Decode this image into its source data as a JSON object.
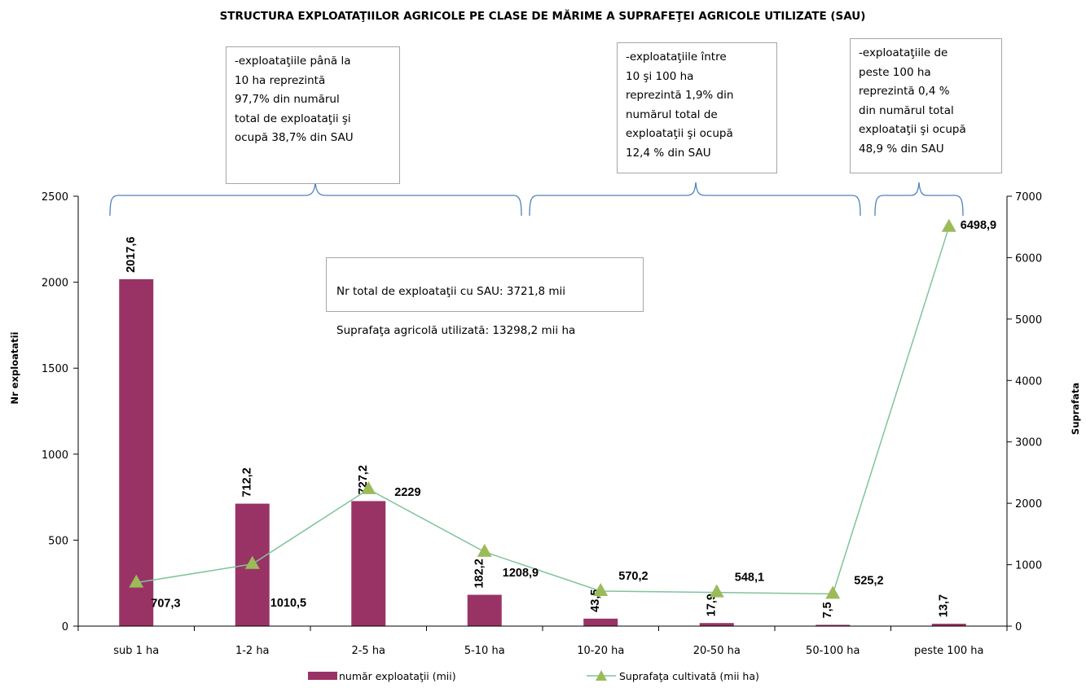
{
  "chart_data": {
    "type": "bar",
    "title": "STRUCTURA EXPLOATAŢIILOR AGRICOLE PE CLASE DE MĂRIME  A SUPRAFEŢEI AGRICOLE UTILIZATE  (SAU)",
    "categories": [
      "sub 1 ha",
      "1-2 ha",
      "2-5 ha",
      "5-10 ha",
      "10-20 ha",
      "20-50 ha",
      "50-100 ha",
      "peste 100 ha"
    ],
    "ylabel": "Nr exploatatii",
    "y2label": "Suprafata",
    "ylim": [
      0,
      2500
    ],
    "y2lim": [
      0,
      7000
    ],
    "yticks": [
      "0",
      "500",
      "1000",
      "1500",
      "2000",
      "2500"
    ],
    "y2ticks": [
      "0",
      "1000",
      "2000",
      "3000",
      "4000",
      "5000",
      "6000",
      "7000"
    ],
    "grid": false,
    "legend_position": "bottom",
    "series": [
      {
        "name": "număr exploataţii (mii)",
        "type": "bar",
        "axis": "left",
        "color": "#993366",
        "values": [
          2017.6,
          712.2,
          727.2,
          182.2,
          43.5,
          17.9,
          7.5,
          13.7
        ],
        "labels": [
          "2017,6",
          "712,2",
          "727,2",
          "182,2",
          "43,5",
          "17,9",
          "7,5",
          "13,7"
        ]
      },
      {
        "name": "Suprafaţa cultivată (mii ha)",
        "type": "line",
        "axis": "right",
        "color": "#7fc49b",
        "marker_color": "#9bbb59",
        "values": [
          707.3,
          1010.5,
          2229,
          1208.9,
          570.2,
          548.1,
          525.2,
          6498.9
        ],
        "labels": [
          "707,3",
          "1010,5",
          "2229",
          "1208,9",
          "570,2",
          "548,1",
          "525,2",
          "6498,9"
        ]
      }
    ],
    "annotations": [
      "-exploataţiile până la\n10 ha reprezintă\n97,7% din numărul\ntotal  de exploataţii şi\nocupă 38,7% din SAU",
      "-exploataţiile între\n10 şi 100 ha\nreprezintă 1,9% din\nnumărul total de\nexploataţii şi ocupă\n12,4 % din SAU",
      "-exploataţiile de\npeste 100 ha\nreprezintă 0,4 %\ndin numărul total\nexploataţii şi ocupă\n48,9 % din SAU"
    ],
    "totals": [
      "Nr total de exploataţii cu SAU:  3721,8  mii",
      "Suprafaţa agricolă utilizată:   13298,2 mii ha"
    ]
  }
}
